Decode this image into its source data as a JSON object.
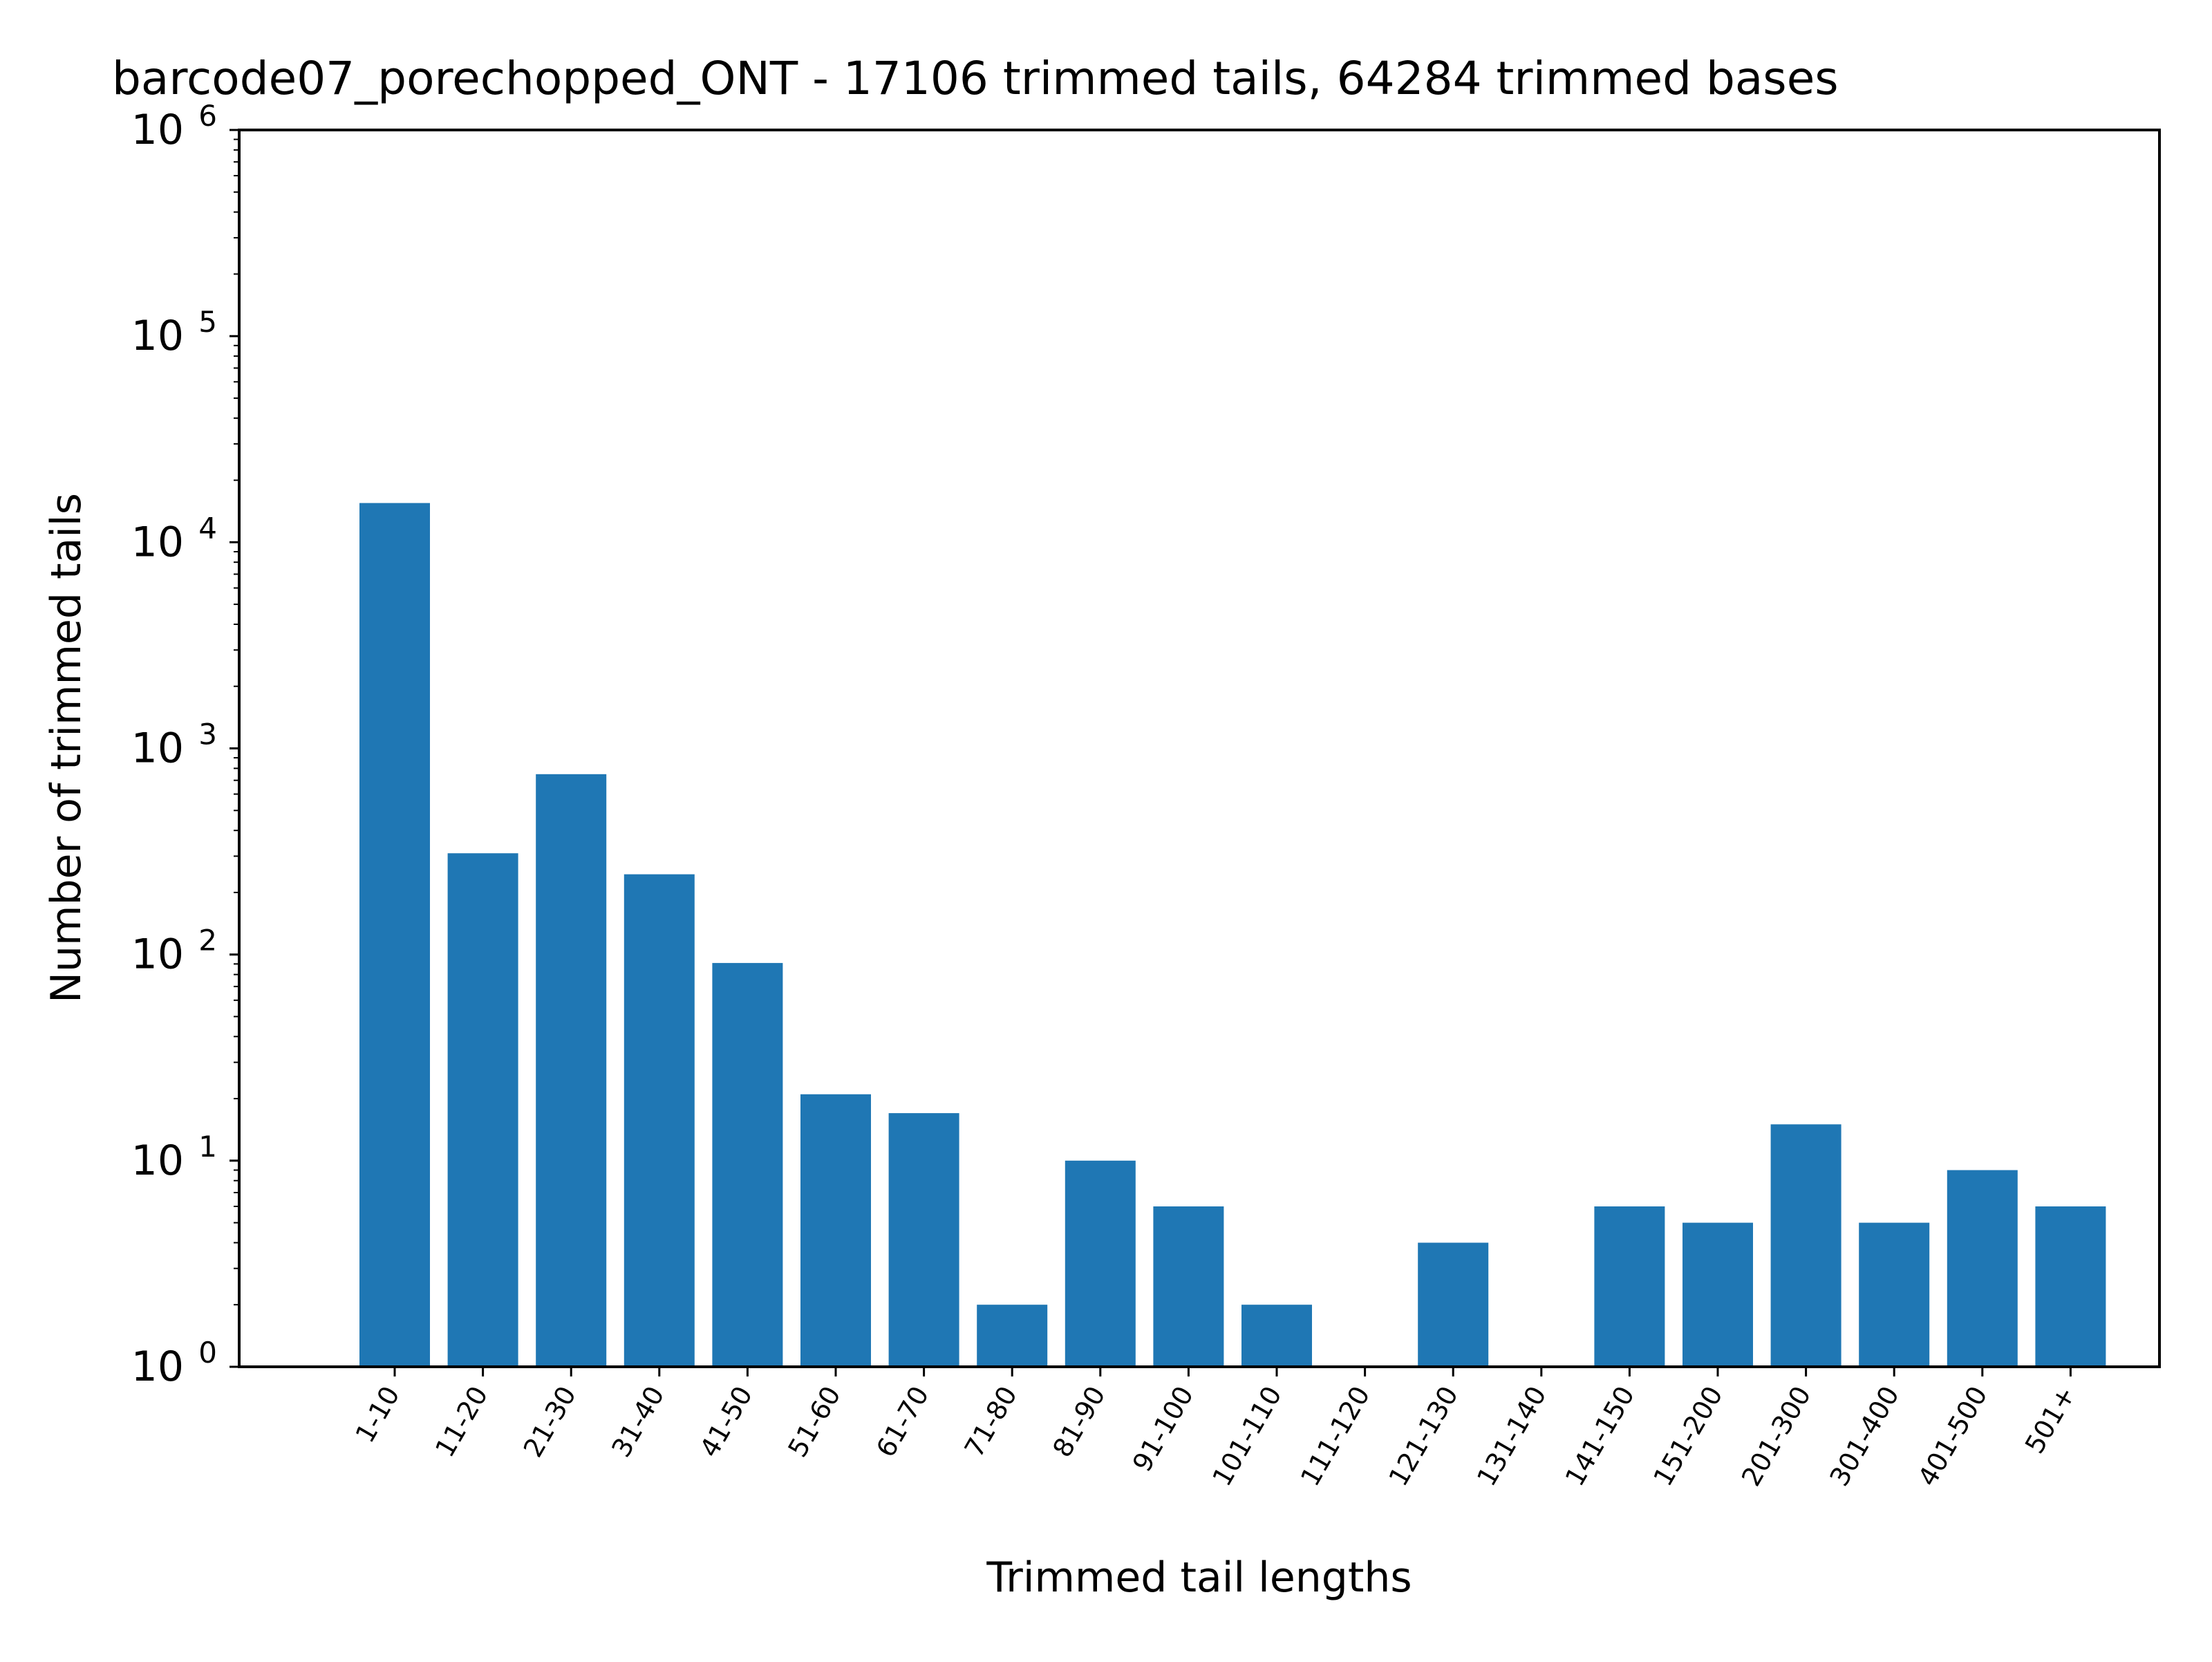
{
  "chart_data": {
    "type": "bar",
    "title": "barcode07_porechopped_ONT - 17106 trimmed tails, 64284 trimmed bases",
    "xlabel": "Trimmed tail lengths",
    "ylabel": "Number of trimmed tails",
    "y_scale": "log",
    "y_base": 10,
    "ylim": [
      1,
      1000000
    ],
    "yticks": [
      1,
      10,
      100,
      1000,
      10000,
      100000,
      1000000
    ],
    "grid": false,
    "legend": "none",
    "categories": [
      "1-10",
      "11-20",
      "21-30",
      "31-40",
      "41-50",
      "51-60",
      "61-70",
      "71-80",
      "81-90",
      "91-100",
      "101-110",
      "111-120",
      "121-130",
      "131-140",
      "141-150",
      "151-200",
      "201-300",
      "301-400",
      "401-500",
      "501+"
    ],
    "values": [
      15500,
      310,
      750,
      245,
      91,
      21,
      17,
      2,
      10,
      6,
      2,
      0,
      4,
      0,
      6,
      5,
      15,
      5,
      9,
      6
    ],
    "bar_color": "#1f77b4"
  }
}
